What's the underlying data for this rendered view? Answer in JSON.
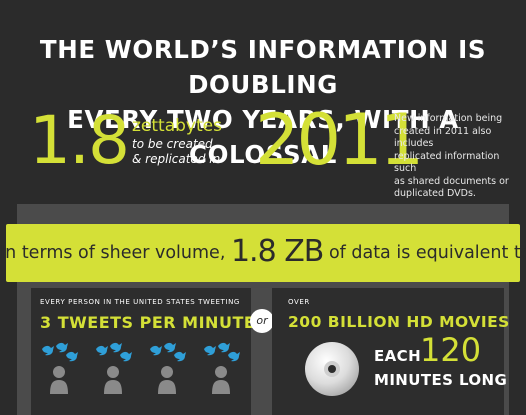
{
  "headline": {
    "line1": "THE WORLD’S INFORMATION IS DOUBLING",
    "line2": "EVERY TWO YEARS, WITH A COLOSSAL"
  },
  "stat": {
    "amount": "1.8",
    "unit": "zettabytes",
    "sub_line1": "to be created",
    "sub_line2": "& replicated in",
    "year": "2011"
  },
  "note": {
    "line1": "New information being",
    "line2": "created in 2011 also includes",
    "line3": "replicated information such",
    "line4": "as shared documents or",
    "line5": "duplicated DVDs."
  },
  "banner": {
    "prefix": "In terms of sheer volume,",
    "amount": "1.8 ZB",
    "suffix": "of data is equivalent to:"
  },
  "left_card": {
    "caption": "EVERY PERSON IN THE UNITED STATES TWEETING",
    "headline": "3 TWEETS PER MINUTE"
  },
  "or_label": "or",
  "right_card": {
    "caption": "OVER",
    "headline": "200 BILLION HD MOVIES",
    "each": "EACH",
    "minutes_value": "120",
    "minutes_label": "MINUTES LONG"
  },
  "colors": {
    "background": "#2b2b2b",
    "accent": "#d4e037",
    "panel": "#4b4b4b",
    "card": "#2d2d2d",
    "bird": "#2f9fd8",
    "person": "#8a8a8a"
  },
  "icons": [
    "bird-icon",
    "person-icon",
    "dvd-disc-icon"
  ]
}
